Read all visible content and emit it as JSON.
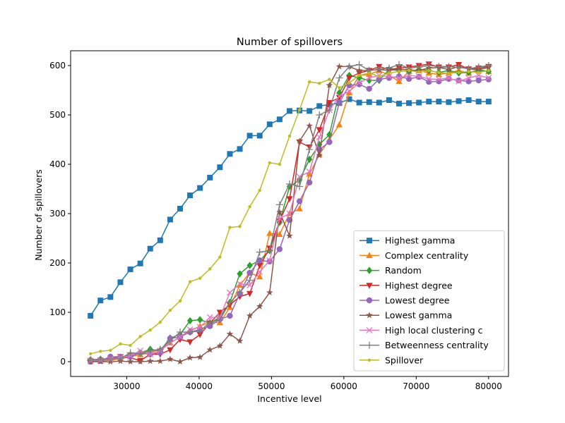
{
  "chart_data": {
    "type": "line",
    "title": "Number of spillovers",
    "xlabel": "Incentive level",
    "ylabel": "Number of spillovers",
    "xlim": [
      22250,
      82750
    ],
    "ylim": [
      -30,
      630
    ],
    "xticks": [
      30000,
      40000,
      50000,
      60000,
      70000,
      80000
    ],
    "xtick_labels": [
      "30000",
      "40000",
      "50000",
      "60000",
      "70000",
      "80000"
    ],
    "yticks": [
      0,
      100,
      200,
      300,
      400,
      500,
      600
    ],
    "ytick_labels": [
      "0",
      "100",
      "200",
      "300",
      "400",
      "500",
      "600"
    ],
    "grid": false,
    "legend_position": "lower-right",
    "x": [
      25000,
      26375,
      27750,
      29125,
      30500,
      31875,
      33250,
      34625,
      36000,
      37375,
      38750,
      40125,
      41500,
      42875,
      44250,
      45625,
      47000,
      48375,
      49750,
      51125,
      52500,
      53875,
      55250,
      56625,
      58000,
      59375,
      60750,
      62125,
      63500,
      64875,
      66250,
      67625,
      69000,
      70375,
      71750,
      73125,
      74500,
      75875,
      77250,
      78625,
      80000
    ],
    "series": [
      {
        "name": "Highest gamma",
        "color": "#1f77b4",
        "marker": "square",
        "values": [
          93,
          124,
          131,
          161,
          187,
          199,
          229,
          246,
          288,
          310,
          337,
          352,
          373,
          394,
          421,
          431,
          458,
          458,
          481,
          491,
          508,
          509,
          508,
          518,
          521,
          524,
          532,
          525,
          526,
          525,
          530,
          523,
          524,
          525,
          527,
          527,
          526,
          528,
          530,
          527,
          527
        ]
      },
      {
        "name": "Complex centrality",
        "color": "#ff7f0e",
        "marker": "triangle-up",
        "values": [
          2,
          1,
          3,
          6,
          10,
          14,
          18,
          25,
          38,
          50,
          62,
          72,
          80,
          79,
          110,
          155,
          180,
          172,
          260,
          258,
          300,
          310,
          380,
          420,
          450,
          480,
          545,
          580,
          582,
          590,
          580,
          568,
          588,
          590,
          585,
          582,
          585,
          590,
          585,
          592,
          588
        ]
      },
      {
        "name": "Random",
        "color": "#2ca02c",
        "marker": "diamond",
        "values": [
          4,
          5,
          6,
          8,
          14,
          18,
          25,
          22,
          48,
          55,
          83,
          85,
          78,
          90,
          120,
          178,
          195,
          205,
          225,
          282,
          355,
          368,
          410,
          440,
          460,
          545,
          580,
          575,
          570,
          570,
          592,
          590,
          588,
          592,
          590,
          586,
          590,
          585,
          586,
          590,
          588
        ]
      },
      {
        "name": "Highest degree",
        "color": "#d62728",
        "marker": "triangle-down",
        "values": [
          1,
          3,
          6,
          10,
          8,
          2,
          15,
          15,
          24,
          45,
          40,
          55,
          78,
          100,
          115,
          132,
          138,
          195,
          230,
          285,
          330,
          445,
          435,
          470,
          525,
          535,
          575,
          585,
          590,
          598,
          592,
          595,
          597,
          600,
          603,
          597,
          597,
          602,
          593,
          595,
          598
        ]
      },
      {
        "name": "Lowest degree",
        "color": "#9467bd",
        "marker": "circle",
        "values": [
          0,
          2,
          10,
          10,
          10,
          18,
          15,
          18,
          47,
          50,
          60,
          65,
          72,
          86,
          93,
          138,
          180,
          205,
          203,
          228,
          287,
          325,
          363,
          430,
          445,
          525,
          560,
          562,
          553,
          572,
          575,
          578,
          573,
          577,
          567,
          568,
          573,
          570,
          568,
          570,
          572
        ]
      },
      {
        "name": "Lowest gamma",
        "color": "#8c564b",
        "marker": "star",
        "values": [
          0,
          0,
          0,
          1,
          0,
          0,
          1,
          1,
          5,
          0,
          8,
          9,
          24,
          32,
          56,
          42,
          93,
          112,
          140,
          303,
          255,
          447,
          478,
          418,
          560,
          598,
          598,
          590,
          590,
          592,
          590,
          593,
          591,
          590,
          595,
          596,
          592,
          598,
          593,
          592,
          596
        ]
      },
      {
        "name": "High local clustering c",
        "color": "#e377c2",
        "marker": "x",
        "values": [
          2,
          3,
          5,
          8,
          12,
          22,
          15,
          22,
          38,
          50,
          65,
          70,
          90,
          90,
          140,
          158,
          155,
          182,
          205,
          290,
          300,
          375,
          385,
          455,
          510,
          538,
          548,
          565,
          575,
          580,
          578,
          575,
          580,
          578,
          573,
          572,
          575,
          568,
          575,
          580,
          575
        ]
      },
      {
        "name": "Betweenness centrality",
        "color": "#7f7f7f",
        "marker": "plus",
        "values": [
          3,
          4,
          5,
          6,
          18,
          16,
          22,
          25,
          42,
          60,
          60,
          62,
          80,
          85,
          120,
          140,
          165,
          222,
          225,
          318,
          360,
          355,
          430,
          500,
          510,
          575,
          598,
          602,
          590,
          592,
          595,
          602,
          595,
          597,
          600,
          598,
          598,
          596,
          594,
          597,
          600
        ]
      },
      {
        "name": "Spillover",
        "color": "#bcbd22",
        "marker": "point",
        "values": [
          16,
          21,
          23,
          36,
          33,
          51,
          64,
          80,
          104,
          123,
          162,
          169,
          188,
          212,
          272,
          274,
          314,
          347,
          403,
          400,
          457,
          510,
          567,
          564,
          572,
          555,
          565,
          580,
          585,
          578,
          585,
          588,
          590,
          587,
          590,
          586,
          584,
          586,
          588,
          586,
          590
        ]
      }
    ]
  }
}
